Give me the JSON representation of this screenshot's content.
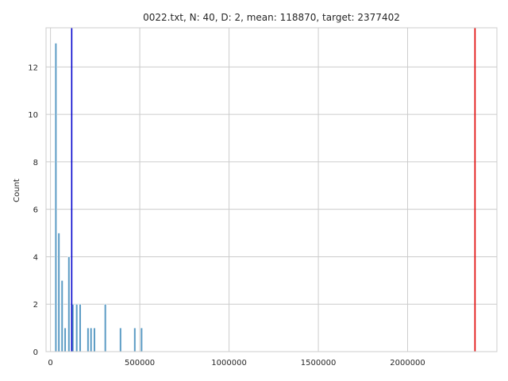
{
  "chart_data": {
    "type": "bar",
    "title": "0022.txt, N: 40, D: 2, mean: 118870, target: 2377402",
    "xlabel": "",
    "ylabel": "Count",
    "xlim": [
      -25000,
      2500000
    ],
    "ylim": [
      0,
      13.65
    ],
    "xticks": [
      {
        "value": 0,
        "label": "0"
      },
      {
        "value": 500000,
        "label": "500000"
      },
      {
        "value": 1000000,
        "label": "1000000"
      },
      {
        "value": 1500000,
        "label": "1500000"
      },
      {
        "value": 2000000,
        "label": "2000000"
      }
    ],
    "yticks": [
      {
        "value": 0,
        "label": "0"
      },
      {
        "value": 2,
        "label": "2"
      },
      {
        "value": 4,
        "label": "4"
      },
      {
        "value": 6,
        "label": "6"
      },
      {
        "value": 8,
        "label": "8"
      },
      {
        "value": 10,
        "label": "10"
      },
      {
        "value": 12,
        "label": "12"
      }
    ],
    "grid": true,
    "bin_width": 11500,
    "bars": [
      {
        "x": 30000,
        "count": 13
      },
      {
        "x": 47000,
        "count": 5
      },
      {
        "x": 65000,
        "count": 3
      },
      {
        "x": 82000,
        "count": 1
      },
      {
        "x": 103000,
        "count": 4
      },
      {
        "x": 125000,
        "count": 2
      },
      {
        "x": 147000,
        "count": 2
      },
      {
        "x": 166000,
        "count": 2
      },
      {
        "x": 210000,
        "count": 1
      },
      {
        "x": 227000,
        "count": 1
      },
      {
        "x": 246000,
        "count": 1
      },
      {
        "x": 307000,
        "count": 2
      },
      {
        "x": 392000,
        "count": 1
      },
      {
        "x": 472000,
        "count": 1
      },
      {
        "x": 510000,
        "count": 1
      }
    ],
    "vlines": [
      {
        "x": 118870,
        "color": "#0000cc"
      },
      {
        "x": 2377402,
        "color": "#e00000"
      }
    ],
    "bar_color": "#5b9bc4",
    "grid_color": "#cccccc"
  }
}
